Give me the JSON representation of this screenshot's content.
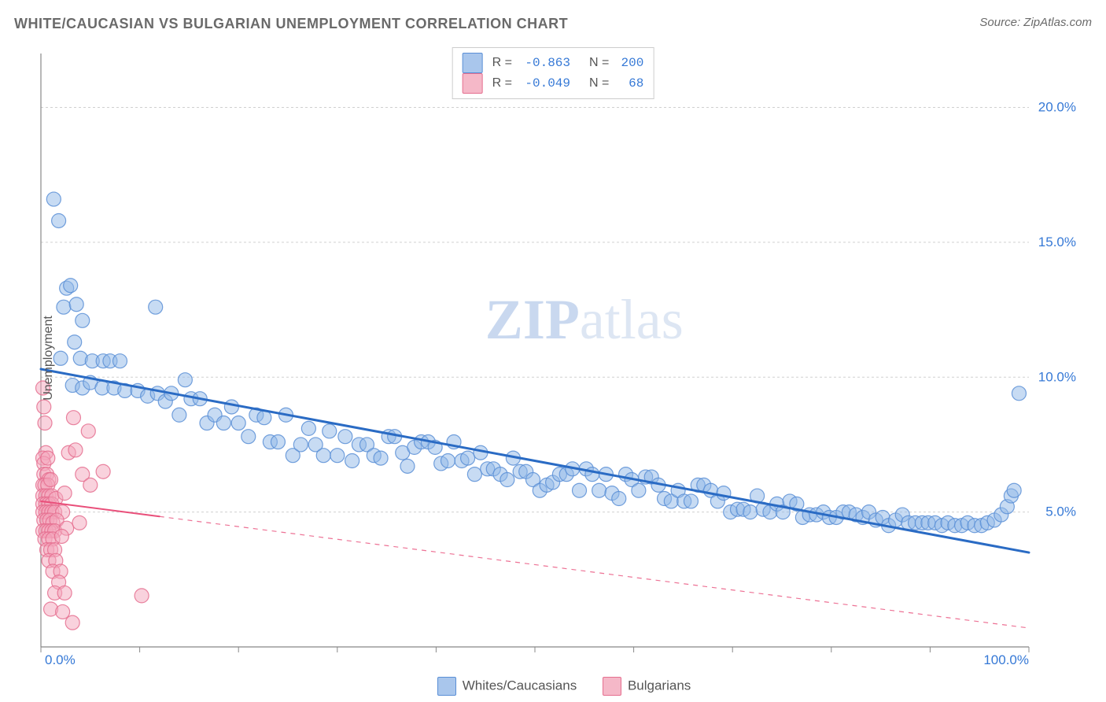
{
  "title": "WHITE/CAUCASIAN VS BULGARIAN UNEMPLOYMENT CORRELATION CHART",
  "source_prefix": "Source: ",
  "source_name": "ZipAtlas.com",
  "watermark_bold": "ZIP",
  "watermark_light": "atlas",
  "ylabel": "Unemployment",
  "chart": {
    "type": "scatter",
    "xlim": [
      0,
      100
    ],
    "ylim": [
      0,
      22
    ],
    "y_ticks": [
      5,
      10,
      15,
      20
    ],
    "y_tick_labels": [
      "5.0%",
      "10.0%",
      "15.0%",
      "20.0%"
    ],
    "x_ticks": [
      0,
      10,
      20,
      30,
      40,
      50,
      60,
      70,
      80,
      90,
      100
    ],
    "x_end_labels": [
      "0.0%",
      "100.0%"
    ],
    "background_color": "#ffffff",
    "grid_color": "#d0d0d0",
    "axis_color": "#888888",
    "axis_label_color": "#3679d6",
    "marker_radius": 9,
    "marker_opacity": 0.5,
    "series": [
      {
        "name": "Whites/Caucasians",
        "color_fill": "#8fb8e8",
        "color_stroke": "#5a8fd6",
        "swatch": "#a9c6ec",
        "r": -0.863,
        "n": 200,
        "trend": {
          "x1": 0,
          "y1": 10.3,
          "x2": 100,
          "y2": 3.5,
          "x_solid_end": 100,
          "color": "#2a6bc4",
          "width": 3
        },
        "points": [
          [
            1.3,
            16.6
          ],
          [
            1.8,
            15.8
          ],
          [
            2.6,
            13.3
          ],
          [
            3,
            13.4
          ],
          [
            2.3,
            12.6
          ],
          [
            3.6,
            12.7
          ],
          [
            4.2,
            12.1
          ],
          [
            11.6,
            12.6
          ],
          [
            2,
            10.7
          ],
          [
            4,
            10.7
          ],
          [
            5.2,
            10.6
          ],
          [
            6.3,
            10.6
          ],
          [
            7,
            10.6
          ],
          [
            8,
            10.6
          ],
          [
            3.4,
            11.3
          ],
          [
            3.2,
            9.7
          ],
          [
            4.2,
            9.6
          ],
          [
            5,
            9.8
          ],
          [
            6.2,
            9.6
          ],
          [
            7.4,
            9.6
          ],
          [
            8.5,
            9.5
          ],
          [
            9.8,
            9.5
          ],
          [
            10.8,
            9.3
          ],
          [
            11.8,
            9.4
          ],
          [
            12.6,
            9.1
          ],
          [
            13.2,
            9.4
          ],
          [
            14,
            8.6
          ],
          [
            15.2,
            9.2
          ],
          [
            16.1,
            9.2
          ],
          [
            14.6,
            9.9
          ],
          [
            16.8,
            8.3
          ],
          [
            17.6,
            8.6
          ],
          [
            18.5,
            8.3
          ],
          [
            19.3,
            8.9
          ],
          [
            20,
            8.3
          ],
          [
            21,
            7.8
          ],
          [
            21.8,
            8.6
          ],
          [
            22.6,
            8.5
          ],
          [
            23.2,
            7.6
          ],
          [
            24,
            7.6
          ],
          [
            24.8,
            8.6
          ],
          [
            25.5,
            7.1
          ],
          [
            26.3,
            7.5
          ],
          [
            27.1,
            8.1
          ],
          [
            27.8,
            7.5
          ],
          [
            28.6,
            7.1
          ],
          [
            29.2,
            8.0
          ],
          [
            30,
            7.1
          ],
          [
            30.8,
            7.8
          ],
          [
            31.5,
            6.9
          ],
          [
            32.2,
            7.5
          ],
          [
            33,
            7.5
          ],
          [
            33.7,
            7.1
          ],
          [
            34.4,
            7.0
          ],
          [
            35.2,
            7.8
          ],
          [
            35.8,
            7.8
          ],
          [
            36.6,
            7.2
          ],
          [
            37.1,
            6.7
          ],
          [
            37.8,
            7.4
          ],
          [
            38.5,
            7.6
          ],
          [
            39.2,
            7.6
          ],
          [
            39.9,
            7.4
          ],
          [
            40.5,
            6.8
          ],
          [
            41.2,
            6.9
          ],
          [
            41.8,
            7.6
          ],
          [
            42.6,
            6.9
          ],
          [
            43.2,
            7.0
          ],
          [
            43.9,
            6.4
          ],
          [
            44.5,
            7.2
          ],
          [
            45.2,
            6.6
          ],
          [
            45.8,
            6.6
          ],
          [
            46.5,
            6.4
          ],
          [
            47.2,
            6.2
          ],
          [
            47.8,
            7.0
          ],
          [
            48.5,
            6.5
          ],
          [
            49.1,
            6.5
          ],
          [
            49.8,
            6.2
          ],
          [
            50.5,
            5.8
          ],
          [
            51.2,
            6.0
          ],
          [
            51.8,
            6.1
          ],
          [
            52.5,
            6.4
          ],
          [
            53.2,
            6.4
          ],
          [
            53.8,
            6.6
          ],
          [
            54.5,
            5.8
          ],
          [
            55.2,
            6.6
          ],
          [
            55.8,
            6.4
          ],
          [
            56.5,
            5.8
          ],
          [
            57.2,
            6.4
          ],
          [
            57.8,
            5.7
          ],
          [
            58.5,
            5.5
          ],
          [
            59.2,
            6.4
          ],
          [
            59.8,
            6.2
          ],
          [
            60.5,
            5.8
          ],
          [
            61.2,
            6.3
          ],
          [
            61.8,
            6.3
          ],
          [
            62.5,
            6.0
          ],
          [
            63.1,
            5.5
          ],
          [
            63.8,
            5.4
          ],
          [
            64.5,
            5.8
          ],
          [
            65.1,
            5.4
          ],
          [
            65.8,
            5.4
          ],
          [
            66.5,
            6.0
          ],
          [
            67.1,
            6.0
          ],
          [
            67.8,
            5.8
          ],
          [
            68.5,
            5.4
          ],
          [
            69.1,
            5.7
          ],
          [
            69.8,
            5.0
          ],
          [
            70.5,
            5.1
          ],
          [
            71.1,
            5.1
          ],
          [
            71.8,
            5.0
          ],
          [
            72.5,
            5.6
          ],
          [
            73.1,
            5.1
          ],
          [
            73.8,
            5.0
          ],
          [
            74.5,
            5.3
          ],
          [
            75.1,
            5.0
          ],
          [
            75.8,
            5.4
          ],
          [
            76.5,
            5.3
          ],
          [
            77.1,
            4.8
          ],
          [
            77.8,
            4.9
          ],
          [
            78.5,
            4.9
          ],
          [
            79.2,
            5.0
          ],
          [
            79.8,
            4.8
          ],
          [
            80.5,
            4.8
          ],
          [
            81.2,
            5.0
          ],
          [
            81.8,
            5.0
          ],
          [
            82.5,
            4.9
          ],
          [
            83.2,
            4.8
          ],
          [
            83.8,
            5.0
          ],
          [
            84.5,
            4.7
          ],
          [
            85.2,
            4.8
          ],
          [
            85.8,
            4.5
          ],
          [
            86.5,
            4.7
          ],
          [
            87.2,
            4.9
          ],
          [
            87.8,
            4.6
          ],
          [
            88.5,
            4.6
          ],
          [
            89.2,
            4.6
          ],
          [
            89.8,
            4.6
          ],
          [
            90.5,
            4.6
          ],
          [
            91.2,
            4.5
          ],
          [
            91.8,
            4.6
          ],
          [
            92.5,
            4.5
          ],
          [
            93.2,
            4.5
          ],
          [
            93.8,
            4.6
          ],
          [
            94.5,
            4.5
          ],
          [
            95.2,
            4.5
          ],
          [
            95.8,
            4.6
          ],
          [
            96.5,
            4.7
          ],
          [
            97.2,
            4.9
          ],
          [
            97.8,
            5.2
          ],
          [
            98.2,
            5.6
          ],
          [
            98.5,
            5.8
          ],
          [
            99,
            9.4
          ]
        ]
      },
      {
        "name": "Bulgarians",
        "color_fill": "#f4a6bb",
        "color_stroke": "#e56f8f",
        "swatch": "#f5b8c8",
        "r": -0.049,
        "n": 68,
        "trend": {
          "x1": 0,
          "y1": 5.4,
          "x2": 100,
          "y2": 0.7,
          "x_solid_end": 12,
          "color": "#e94f7a",
          "width": 2
        },
        "points": [
          [
            0.2,
            9.6
          ],
          [
            0.3,
            8.9
          ],
          [
            0.4,
            8.3
          ],
          [
            0.5,
            7.2
          ],
          [
            0.2,
            7.0
          ],
          [
            0.3,
            6.8
          ],
          [
            0.7,
            7.0
          ],
          [
            0.3,
            6.4
          ],
          [
            0.6,
            6.4
          ],
          [
            0.8,
            6.2
          ],
          [
            0.2,
            6.0
          ],
          [
            0.4,
            6.0
          ],
          [
            0.7,
            6.0
          ],
          [
            1.0,
            6.2
          ],
          [
            0.2,
            5.6
          ],
          [
            0.5,
            5.6
          ],
          [
            0.8,
            5.6
          ],
          [
            1.1,
            5.6
          ],
          [
            0.2,
            5.3
          ],
          [
            0.5,
            5.3
          ],
          [
            0.8,
            5.3
          ],
          [
            1.1,
            5.3
          ],
          [
            1.5,
            5.5
          ],
          [
            0.2,
            5.0
          ],
          [
            0.5,
            5.0
          ],
          [
            0.8,
            5.0
          ],
          [
            1.1,
            5.0
          ],
          [
            1.4,
            5.0
          ],
          [
            2.2,
            5.0
          ],
          [
            0.3,
            4.7
          ],
          [
            0.6,
            4.7
          ],
          [
            0.9,
            4.7
          ],
          [
            1.2,
            4.6
          ],
          [
            1.6,
            4.7
          ],
          [
            2.4,
            5.7
          ],
          [
            0.2,
            4.3
          ],
          [
            0.5,
            4.3
          ],
          [
            0.8,
            4.3
          ],
          [
            1.1,
            4.3
          ],
          [
            1.4,
            4.3
          ],
          [
            2.6,
            4.4
          ],
          [
            2.8,
            7.2
          ],
          [
            0.4,
            4.0
          ],
          [
            0.8,
            4.0
          ],
          [
            1.2,
            4.0
          ],
          [
            2.1,
            4.1
          ],
          [
            3.3,
            8.5
          ],
          [
            3.5,
            7.3
          ],
          [
            4.2,
            6.4
          ],
          [
            0.6,
            3.6
          ],
          [
            1.0,
            3.6
          ],
          [
            1.4,
            3.6
          ],
          [
            3.9,
            4.6
          ],
          [
            4.8,
            8.0
          ],
          [
            5.0,
            6.0
          ],
          [
            0.8,
            3.2
          ],
          [
            1.5,
            3.2
          ],
          [
            6.3,
            6.5
          ],
          [
            1.2,
            2.8
          ],
          [
            2.0,
            2.8
          ],
          [
            1.8,
            2.4
          ],
          [
            1.4,
            2.0
          ],
          [
            2.4,
            2.0
          ],
          [
            10.2,
            1.9
          ],
          [
            1.0,
            1.4
          ],
          [
            2.2,
            1.3
          ],
          [
            3.2,
            0.9
          ]
        ]
      }
    ]
  },
  "legend_top_label_r": "R =",
  "legend_top_label_n": "N =",
  "legend_bottom": [
    {
      "label": "Whites/Caucasians",
      "swatch": "#a9c6ec",
      "border": "#5a8fd6"
    },
    {
      "label": "Bulgarians",
      "swatch": "#f5b8c8",
      "border": "#e56f8f"
    }
  ]
}
